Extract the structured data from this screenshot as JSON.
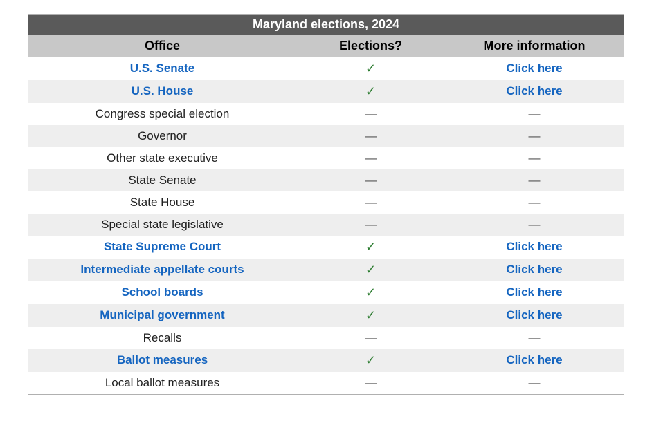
{
  "table": {
    "title": "Maryland elections, 2024",
    "columns": {
      "office": "Office",
      "elections": "Elections?",
      "more": "More information"
    },
    "checkmark": "✓",
    "dash": "—",
    "link_text": "Click here",
    "colors": {
      "title_bg": "#5a5a5a",
      "title_fg": "#ffffff",
      "header_bg": "#c8c8c8",
      "row_even_bg": "#ffffff",
      "row_odd_bg": "#eeeeee",
      "link_color": "#1565c0",
      "check_color": "#2e7d32",
      "text_color": "#222222",
      "border_color": "#b0b0b0"
    },
    "rows": [
      {
        "office": "U.S. Senate",
        "is_link": true,
        "has_election": true
      },
      {
        "office": "U.S. House",
        "is_link": true,
        "has_election": true
      },
      {
        "office": "Congress special election",
        "is_link": false,
        "has_election": false
      },
      {
        "office": "Governor",
        "is_link": false,
        "has_election": false
      },
      {
        "office": "Other state executive",
        "is_link": false,
        "has_election": false
      },
      {
        "office": "State Senate",
        "is_link": false,
        "has_election": false
      },
      {
        "office": "State House",
        "is_link": false,
        "has_election": false
      },
      {
        "office": "Special state legislative",
        "is_link": false,
        "has_election": false
      },
      {
        "office": "State Supreme Court",
        "is_link": true,
        "has_election": true
      },
      {
        "office": "Intermediate appellate courts",
        "is_link": true,
        "has_election": true
      },
      {
        "office": "School boards",
        "is_link": true,
        "has_election": true
      },
      {
        "office": "Municipal government",
        "is_link": true,
        "has_election": true
      },
      {
        "office": "Recalls",
        "is_link": false,
        "has_election": false
      },
      {
        "office": "Ballot measures",
        "is_link": true,
        "has_election": true
      },
      {
        "office": "Local ballot measures",
        "is_link": false,
        "has_election": false
      }
    ]
  }
}
